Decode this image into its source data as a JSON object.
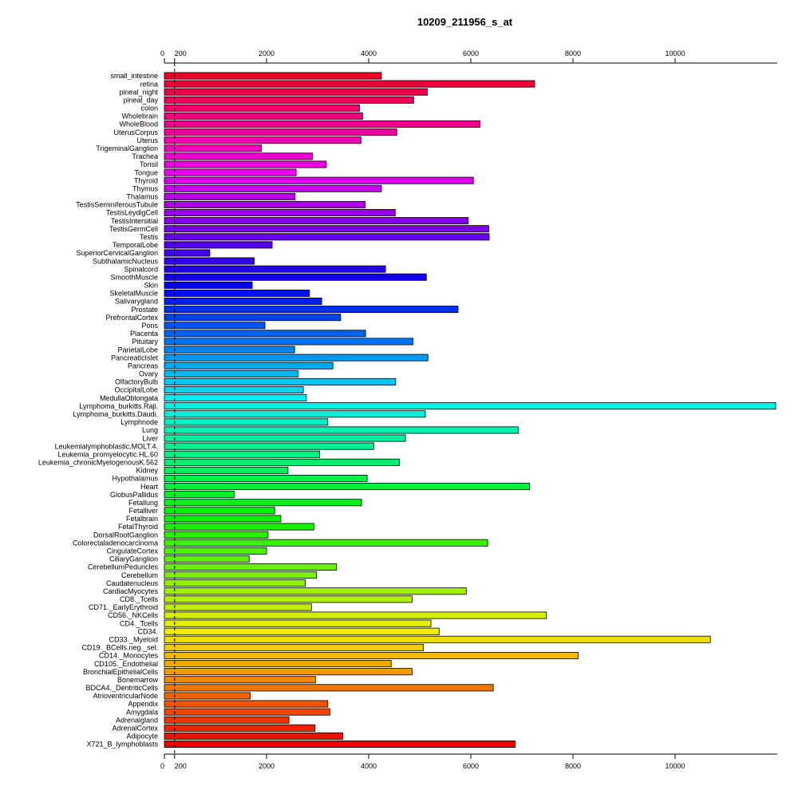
{
  "chart_data": {
    "type": "bar",
    "orientation": "horizontal",
    "title": "10209_211956_s_at",
    "xlabel": "",
    "ylabel": "",
    "xlim": [
      0,
      12000
    ],
    "x_ticks": [
      0,
      200,
      2000,
      4000,
      6000,
      8000,
      10000
    ],
    "x_tick_labels": [
      "0",
      "200",
      "2000",
      "4000",
      "6000",
      "8000",
      "10000"
    ],
    "axis_positions": [
      "top",
      "bottom"
    ],
    "reference_line": 200,
    "grid": false,
    "legend": "none",
    "categories": [
      "small_intestine",
      "retina",
      "pineal_night",
      "pineal_day",
      "colon",
      "Wholebrain",
      "WholeBlood",
      "UterusCorpus",
      "Uterus",
      "TrigeminalGanglion",
      "Trachea",
      "Tonsil",
      "Tongue",
      "Thyroid",
      "Thymus",
      "Thalamus",
      "TestisSeminiferousTubule",
      "TestisLeydigCell",
      "TestisIntersitial",
      "TestisGermCell",
      "Testis",
      "TemporalLobe",
      "SuperiorCervicalGanglion",
      "SubthalamicNucleus",
      "Spinalcord",
      "SmoothMuscle",
      "Skin",
      "SkeletalMuscle",
      "Salivarygland",
      "Prostate",
      "PrefrontalCortex",
      "Pons",
      "Placenta",
      "Pituitary",
      "ParietalLobe",
      "PancreaticIslet",
      "Pancreas",
      "Ovary",
      "OlfactoryBulb",
      "OccipitalLobe",
      "MedullaOblongata",
      "Lymphoma_burkitts.Raji.",
      "Lymphoma_burkitts.Daudi.",
      "Lymphnode",
      "Lung",
      "Liver",
      "Leukemialymphoblastic.MOLT.4.",
      "Leukemia_promyelocytic.HL.60",
      "Leukemia_chronicMyelogenousK.562",
      "Kidney",
      "Hypothalamus",
      "Heart",
      "GlobusPallidus",
      "Fetallung",
      "Fetalliver",
      "Fetalbrain",
      "FetalThyroid",
      "DorsalRootGanglion",
      "Colorectaladenocarcinoma",
      "CingulateCortex",
      "CiliaryGanglion",
      "CerebellumPeduncles",
      "Cerebellum",
      "Caudatenucleus",
      "CardiacMyocytes",
      "CD8._Tcells",
      "CD71._EarlyErythroid",
      "CD56._NKCells",
      "CD4._Tcells",
      "CD34.",
      "CD33._Myeloid",
      "CD19._BCells.neg._sel.",
      "CD14._Monocytes",
      "CD105._Endothelial",
      "BronchialEpithelialCells",
      "Bonemarrow",
      "BDCA4._DentriticCells",
      "AtrioventricularNode",
      "Appendix",
      "Amygdala",
      "Adrenalgland",
      "AdrenalCortex",
      "Adipocyte",
      "X721_B_lymphoblasts"
    ],
    "values": [
      4250,
      7250,
      5150,
      4880,
      3820,
      3880,
      6180,
      4550,
      3850,
      1900,
      2900,
      3170,
      2580,
      6050,
      4250,
      2560,
      3930,
      4520,
      5950,
      6350,
      6360,
      2110,
      890,
      1760,
      4330,
      5130,
      1720,
      2840,
      3080,
      5750,
      3450,
      1970,
      3940,
      4870,
      2550,
      5160,
      3300,
      2620,
      4530,
      2720,
      2780,
      11970,
      5110,
      3200,
      6930,
      4720,
      4100,
      3040,
      4600,
      2420,
      3970,
      7150,
      1370,
      3860,
      2160,
      2280,
      2930,
      2030,
      6330,
      2000,
      1660,
      3370,
      2980,
      2760,
      5910,
      4850,
      2880,
      7480,
      5220,
      5380,
      10690,
      5070,
      8100,
      4440,
      4850,
      2960,
      6440,
      1680,
      3200,
      3240,
      2440,
      2950,
      3490,
      6870
    ]
  }
}
